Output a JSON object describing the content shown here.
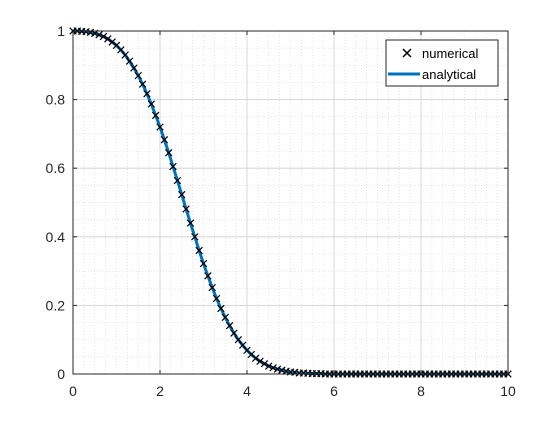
{
  "chart_data": {
    "type": "line",
    "xlim": [
      0,
      10
    ],
    "ylim": [
      0,
      1
    ],
    "grid": "on (major and minor)",
    "legend_position": "top-right",
    "x_ticks": [
      0,
      2,
      4,
      6,
      8,
      10
    ],
    "x_tick_labels": [
      "0",
      "2",
      "4",
      "6",
      "8",
      "10"
    ],
    "y_ticks": [
      0,
      0.2,
      0.4,
      0.6,
      0.8,
      1
    ],
    "y_tick_labels": [
      "0",
      "0.2",
      "0.4",
      "0.6",
      "0.8",
      "1"
    ],
    "series": [
      {
        "name": "numerical",
        "style": "markers",
        "marker": "x",
        "color": "#000000",
        "x": [
          0.0,
          0.1,
          0.2,
          0.3,
          0.4,
          0.5,
          0.6,
          0.7,
          0.8,
          0.9,
          1.0,
          1.1,
          1.2,
          1.3,
          1.4,
          1.5,
          1.6,
          1.7,
          1.8,
          1.9,
          2.0,
          2.1,
          2.2,
          2.3,
          2.4,
          2.5,
          2.6,
          2.7,
          2.8,
          2.9,
          3.0,
          3.1,
          3.2,
          3.3,
          3.4,
          3.5,
          3.6,
          3.7,
          3.8,
          3.9,
          4.0,
          4.1,
          4.2,
          4.3,
          4.4,
          4.5,
          4.6,
          4.7,
          4.8,
          4.9,
          5.0,
          5.1,
          5.2,
          5.3,
          5.4,
          5.5,
          5.6,
          5.7,
          5.8,
          5.9,
          6.0,
          6.1,
          6.2,
          6.3,
          6.4,
          6.5,
          6.6,
          6.7,
          6.8,
          6.9,
          7.0,
          7.1,
          7.2,
          7.3,
          7.4,
          7.5,
          7.6,
          7.7,
          7.8,
          7.9,
          8.0,
          8.1,
          8.2,
          8.3,
          8.4,
          8.5,
          8.6,
          8.7,
          8.8,
          8.9,
          9.0,
          9.1,
          9.2,
          9.3,
          9.4,
          9.5,
          9.6,
          9.7,
          9.8,
          9.9,
          10.0
        ],
        "y": [
          1.0,
          1.0,
          0.999,
          0.998,
          0.996,
          0.993,
          0.989,
          0.984,
          0.977,
          0.968,
          0.958,
          0.945,
          0.93,
          0.912,
          0.892,
          0.87,
          0.845,
          0.817,
          0.787,
          0.754,
          0.72,
          0.683,
          0.645,
          0.605,
          0.564,
          0.523,
          0.481,
          0.44,
          0.4,
          0.36,
          0.322,
          0.286,
          0.252,
          0.22,
          0.191,
          0.165,
          0.141,
          0.119,
          0.1,
          0.084,
          0.069,
          0.057,
          0.046,
          0.037,
          0.03,
          0.023,
          0.018,
          0.014,
          0.011,
          0.008,
          0.006,
          0.005,
          0.003,
          0.003,
          0.002,
          0.001,
          0.001,
          0.001,
          0.0,
          0.0,
          0.0,
          0.0,
          0.0,
          0.0,
          0.0,
          0.0,
          0.0,
          0.0,
          0.0,
          0.0,
          0.0,
          0.0,
          0.0,
          0.0,
          0.0,
          0.0,
          0.0,
          0.0,
          0.0,
          0.0,
          0.0,
          0.0,
          0.0,
          0.0,
          0.0,
          0.0,
          0.0,
          0.0,
          0.0,
          0.0,
          0.0,
          0.0,
          0.0,
          0.0,
          0.0,
          0.0,
          0.0,
          0.0,
          0.0,
          0.0,
          0.0
        ]
      },
      {
        "name": "analytical",
        "style": "line",
        "color": "#0072BD",
        "x": [
          0.0,
          0.1,
          0.2,
          0.3,
          0.4,
          0.5,
          0.6,
          0.7,
          0.8,
          0.9,
          1.0,
          1.1,
          1.2,
          1.3,
          1.4,
          1.5,
          1.6,
          1.7,
          1.8,
          1.9,
          2.0,
          2.1,
          2.2,
          2.3,
          2.4,
          2.5,
          2.6,
          2.7,
          2.8,
          2.9,
          3.0,
          3.1,
          3.2,
          3.3,
          3.4,
          3.5,
          3.6,
          3.7,
          3.8,
          3.9,
          4.0,
          4.1,
          4.2,
          4.3,
          4.4,
          4.5,
          4.6,
          4.7,
          4.8,
          4.9,
          5.0,
          5.1,
          5.2,
          5.3,
          5.4,
          5.5,
          5.6,
          5.7,
          5.8,
          5.9,
          6.0,
          6.1,
          6.2,
          6.3,
          6.4,
          6.5,
          6.6,
          6.7,
          6.8,
          6.9,
          7.0,
          7.1,
          7.2,
          7.3,
          7.4,
          7.5,
          7.6,
          7.7,
          7.8,
          7.9,
          8.0,
          8.1,
          8.2,
          8.3,
          8.4,
          8.5,
          8.6,
          8.7,
          8.8,
          8.9,
          9.0,
          9.1,
          9.2,
          9.3,
          9.4,
          9.5,
          9.6,
          9.7,
          9.8,
          9.9,
          10.0
        ],
        "y": [
          1.0,
          1.0,
          0.999,
          0.998,
          0.996,
          0.993,
          0.989,
          0.984,
          0.977,
          0.968,
          0.958,
          0.945,
          0.93,
          0.912,
          0.892,
          0.87,
          0.845,
          0.817,
          0.787,
          0.754,
          0.72,
          0.683,
          0.645,
          0.605,
          0.564,
          0.523,
          0.481,
          0.44,
          0.4,
          0.36,
          0.322,
          0.286,
          0.252,
          0.22,
          0.191,
          0.165,
          0.141,
          0.119,
          0.1,
          0.084,
          0.069,
          0.057,
          0.046,
          0.037,
          0.03,
          0.023,
          0.018,
          0.014,
          0.011,
          0.008,
          0.006,
          0.005,
          0.003,
          0.003,
          0.002,
          0.001,
          0.001,
          0.001,
          0.0,
          0.0,
          0.0,
          0.0,
          0.0,
          0.0,
          0.0,
          0.0,
          0.0,
          0.0,
          0.0,
          0.0,
          0.0,
          0.0,
          0.0,
          0.0,
          0.0,
          0.0,
          0.0,
          0.0,
          0.0,
          0.0,
          0.0,
          0.0,
          0.0,
          0.0,
          0.0,
          0.0,
          0.0,
          0.0,
          0.0,
          0.0,
          0.0,
          0.0,
          0.0,
          0.0,
          0.0,
          0.0,
          0.0,
          0.0,
          0.0,
          0.0,
          0.0
        ]
      }
    ]
  },
  "legend": {
    "numerical_label": "numerical",
    "analytical_label": "analytical"
  }
}
